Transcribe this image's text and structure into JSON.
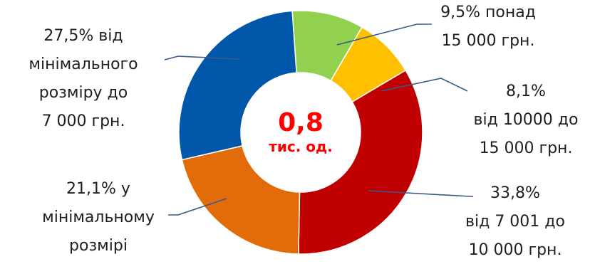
{
  "chart_data": {
    "type": "pie",
    "variant": "donut",
    "center_value": "0,8",
    "center_unit": "тис. од.",
    "slices": [
      {
        "value": 9.5,
        "color": "#92d050",
        "label": [
          "9,5% понад",
          "15 000 грн."
        ]
      },
      {
        "value": 8.1,
        "color": "#ffc000",
        "label": [
          "8,1%",
          "від 10000 до",
          "15 000 грн."
        ]
      },
      {
        "value": 33.8,
        "color": "#c00000",
        "label": [
          "33,8%",
          "від 7 001 до",
          "10 000 грн."
        ]
      },
      {
        "value": 21.1,
        "color": "#e36c0a",
        "label": [
          "21,1% у",
          "мінімальному",
          "розмірі"
        ]
      },
      {
        "value": 27.5,
        "color": "#0056a8",
        "label": [
          "27,5% від",
          "мінімального",
          "розміру до",
          "7 000 грн."
        ]
      }
    ]
  }
}
